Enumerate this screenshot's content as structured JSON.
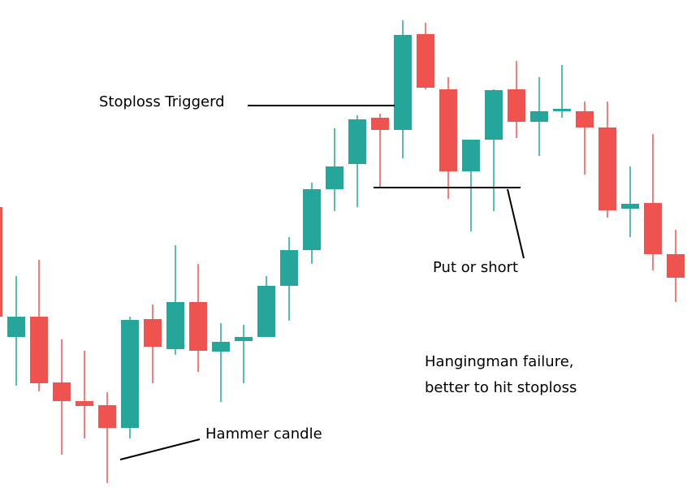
{
  "chart_data": {
    "type": "candlestick",
    "up_color": "#26a69a",
    "down_color": "#ef5350",
    "ylim": [
      0,
      600
    ],
    "series": [
      {
        "open": [
          345,
          185,
          210,
          129,
          106,
          101,
          73,
          207,
          170,
          228,
          167,
          180,
          185,
          248,
          292,
          367,
          398,
          455,
          440,
          558,
          490,
          389,
          428,
          490,
          450,
          463,
          463,
          443,
          343,
          350,
          287
        ],
        "high": [
          345,
          260,
          280,
          182,
          168,
          117,
          210,
          225,
          298,
          275,
          202,
          200,
          260,
          308,
          375,
          442,
          458,
          460,
          575,
          572,
          505,
          428,
          490,
          525,
          505,
          520,
          475,
          475,
          395,
          435,
          317
        ],
        "low": [
          200,
          125,
          118,
          40,
          60,
          5,
          60,
          128,
          163,
          142,
          105,
          128,
          185,
          205,
          275,
          340,
          345,
          370,
          405,
          490,
          355,
          315,
          340,
          430,
          408,
          455,
          385,
          332,
          308,
          267,
          228
        ],
        "close": [
          210,
          210,
          128,
          106,
          100,
          73,
          206,
          173,
          228,
          168,
          179,
          185,
          248,
          292,
          367,
          395,
          453,
          440,
          557,
          492,
          389,
          428,
          489,
          450,
          463,
          466,
          443,
          341,
          349,
          287,
          258
        ]
      }
    ],
    "annotations": {
      "stoploss": "Stoploss Triggerd",
      "put": "Put or short",
      "hangingman": [
        "Hangingman failure,",
        "better to hit stoploss"
      ],
      "hammer": "Hammer candle"
    }
  }
}
